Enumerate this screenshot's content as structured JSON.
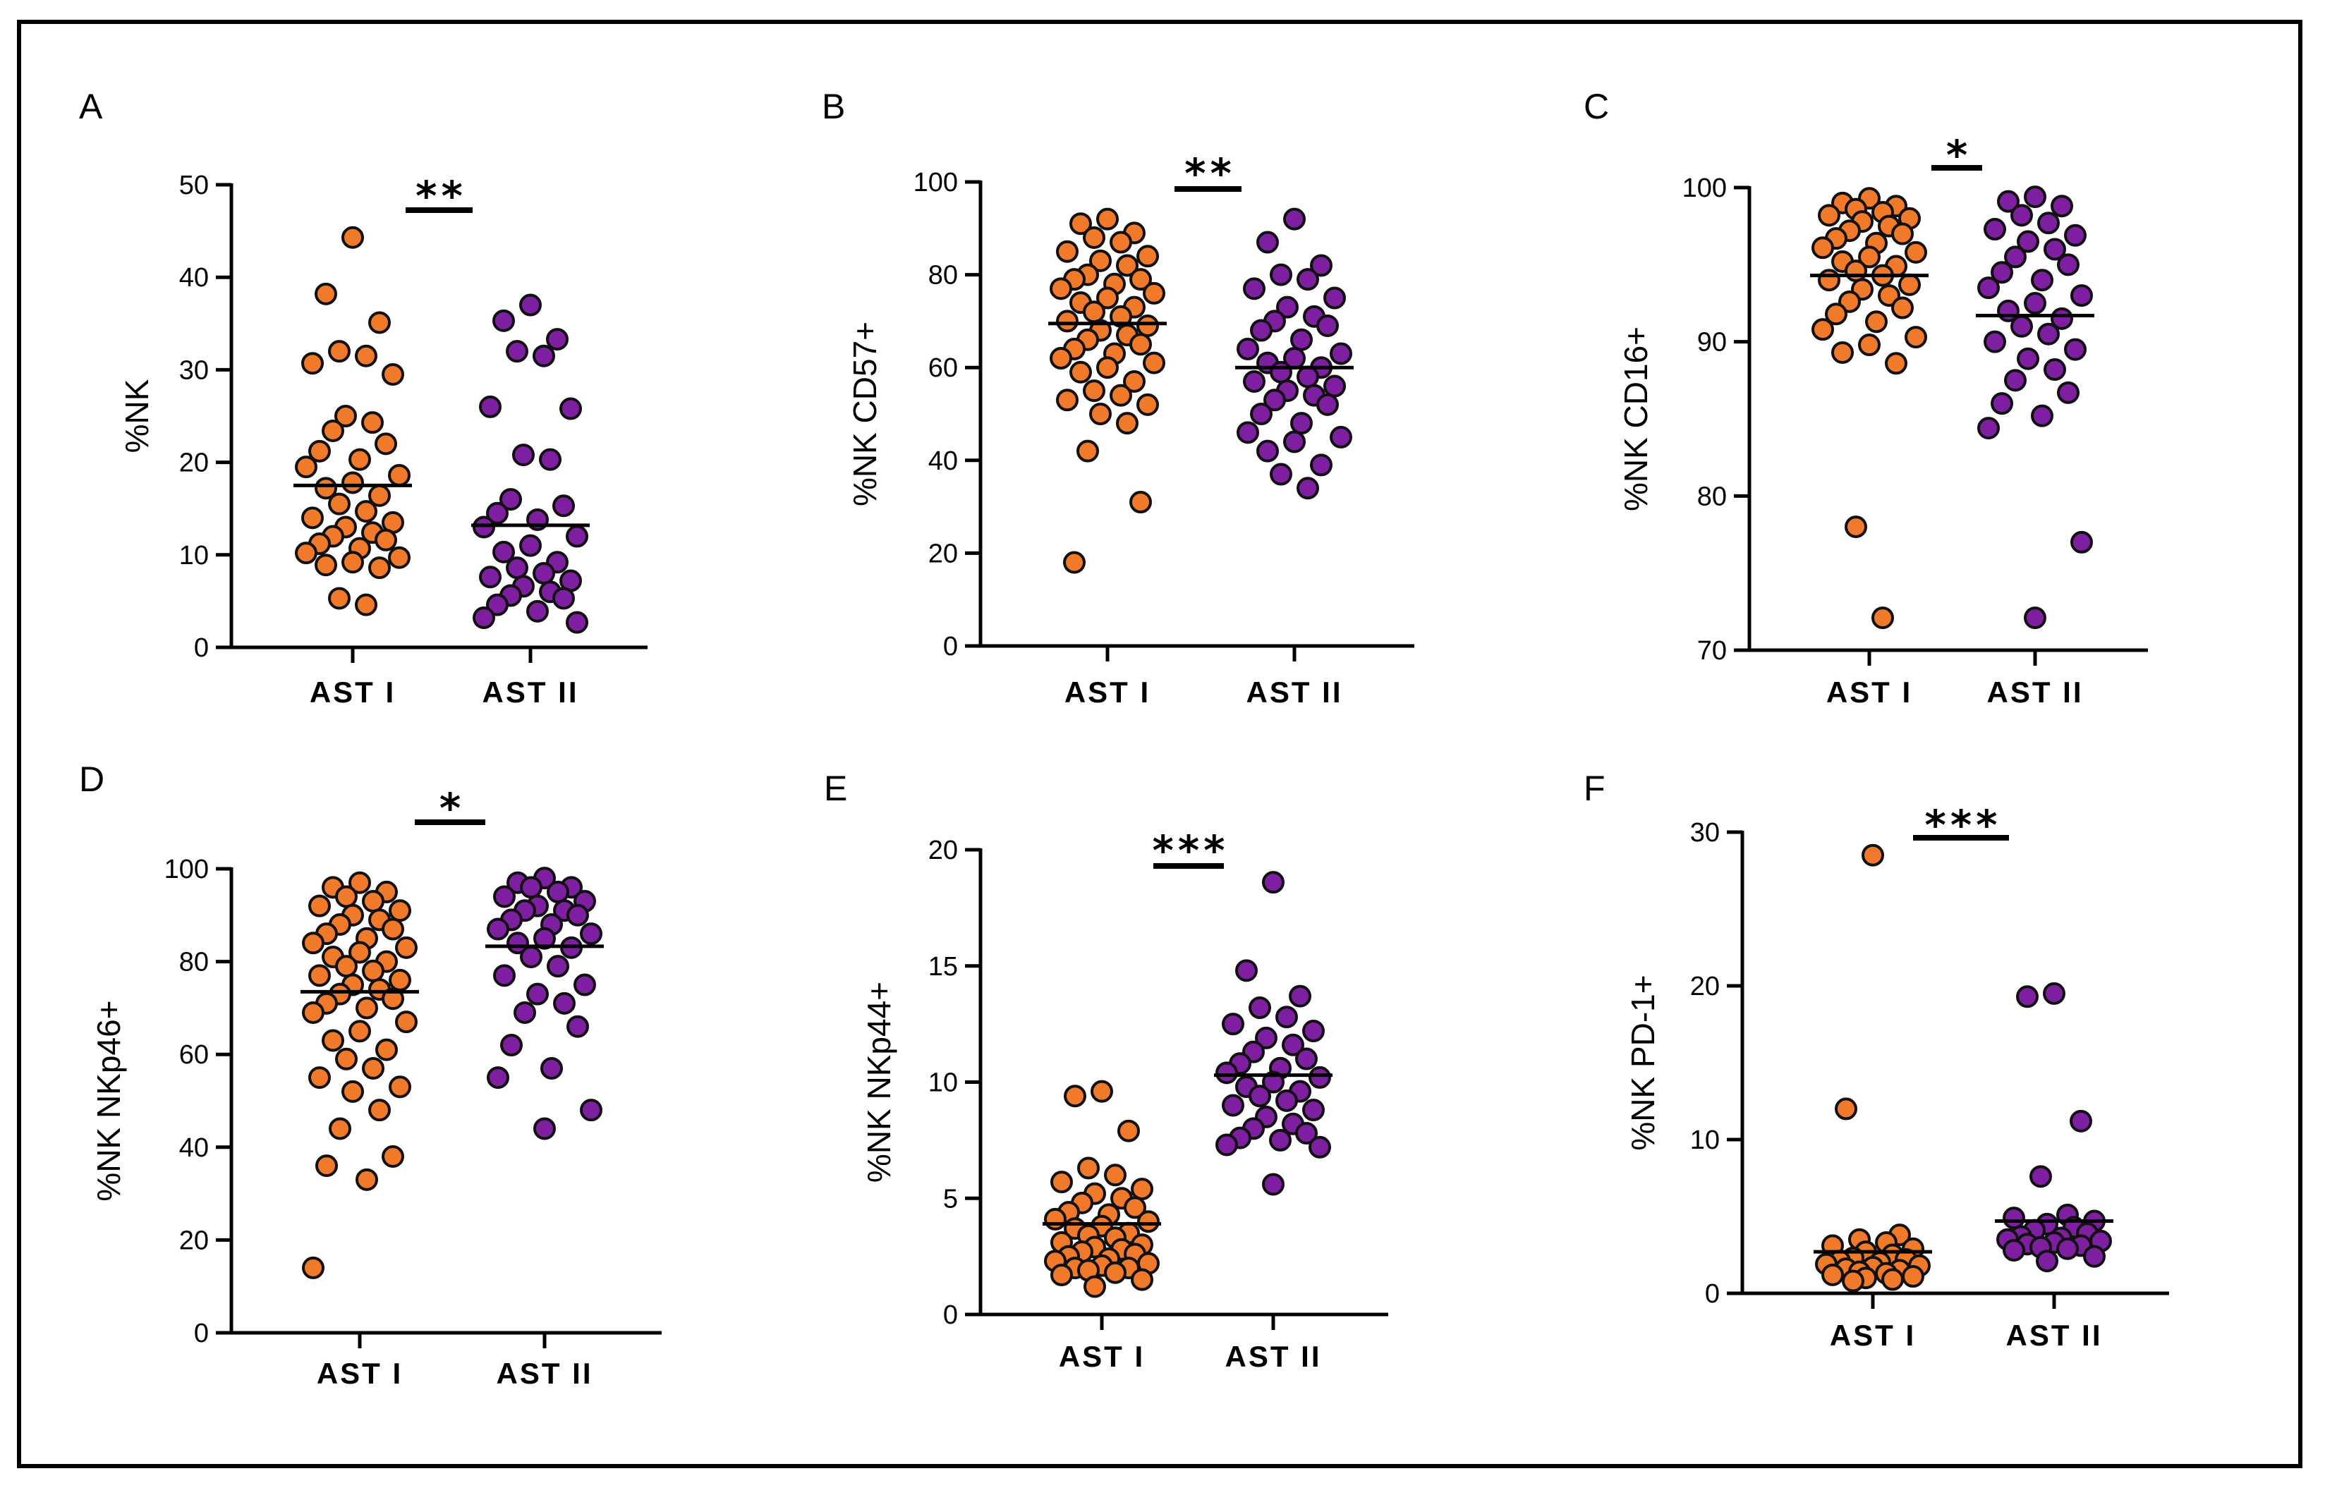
{
  "colors": {
    "ast1": "#F07A2A",
    "ast2": "#7D1FA0",
    "outline": "#111111"
  },
  "chart_data": [
    {
      "type": "scatter",
      "panel": "A",
      "ylabel": "%NK",
      "ylim": [
        0,
        50
      ],
      "yticks": [
        0,
        10,
        20,
        30,
        40,
        50
      ],
      "categories": [
        "AST I",
        "AST II"
      ],
      "significance": "**",
      "series": [
        {
          "name": "AST I",
          "mean": 17.5,
          "values": [
            44.3,
            38.2,
            35.1,
            32.0,
            31.5,
            30.7,
            29.5,
            25.0,
            24.3,
            23.4,
            22.0,
            21.2,
            20.3,
            19.5,
            18.6,
            17.8,
            17.2,
            16.4,
            15.5,
            14.7,
            14.0,
            13.5,
            13.0,
            12.4,
            12.0,
            11.6,
            11.2,
            10.7,
            10.2,
            9.7,
            9.2,
            8.9,
            8.6,
            5.3,
            4.6
          ]
        },
        {
          "name": "AST II",
          "mean": 13.2,
          "values": [
            37.0,
            35.3,
            33.3,
            32.0,
            31.5,
            26.0,
            25.8,
            20.8,
            20.3,
            16.0,
            15.3,
            14.5,
            13.8,
            13.0,
            12.0,
            11.0,
            10.3,
            9.2,
            8.6,
            8.0,
            7.6,
            7.2,
            6.6,
            6.0,
            5.6,
            5.3,
            4.6,
            3.9,
            3.2,
            2.7
          ]
        }
      ]
    },
    {
      "type": "scatter",
      "panel": "B",
      "ylabel": "%NK CD57+",
      "ylim": [
        0,
        100
      ],
      "yticks": [
        0,
        20,
        40,
        60,
        80,
        100
      ],
      "categories": [
        "AST I",
        "AST II"
      ],
      "significance": "**",
      "series": [
        {
          "name": "AST I",
          "mean": 69.5,
          "values": [
            92,
            91,
            89,
            88,
            87,
            85,
            84,
            83,
            82,
            80,
            79,
            79,
            78,
            77,
            76,
            75,
            74,
            73,
            72,
            71,
            70,
            69,
            68,
            67,
            66,
            65,
            64,
            63,
            62,
            61,
            60,
            59,
            57,
            55,
            54,
            53,
            52,
            50,
            48,
            42,
            31,
            18
          ]
        },
        {
          "name": "AST II",
          "mean": 60,
          "values": [
            92,
            87,
            82,
            80,
            79,
            77,
            75,
            73,
            71,
            70,
            69,
            68,
            66,
            64,
            63,
            62,
            61,
            60,
            59,
            58,
            57,
            56,
            55,
            54,
            53,
            52,
            50,
            48,
            46,
            45,
            44,
            42,
            39,
            37,
            34
          ]
        }
      ]
    },
    {
      "type": "scatter",
      "panel": "C",
      "ylabel": "%NK CD16+",
      "ylim": [
        70,
        100
      ],
      "yticks": [
        70,
        80,
        90,
        100
      ],
      "categories": [
        "AST I",
        "AST II"
      ],
      "significance": "*",
      "series": [
        {
          "name": "AST I",
          "mean": 94.3,
          "values": [
            99.3,
            99.0,
            98.8,
            98.6,
            98.4,
            98.2,
            98.0,
            97.8,
            97.5,
            97.2,
            97.0,
            96.7,
            96.4,
            96.1,
            95.8,
            95.5,
            95.2,
            94.9,
            94.6,
            94.3,
            94.0,
            93.7,
            93.4,
            93.0,
            92.6,
            92.2,
            91.8,
            91.3,
            90.8,
            90.3,
            89.8,
            89.3,
            88.6,
            78.0,
            72.1
          ]
        },
        {
          "name": "AST II",
          "mean": 91.7,
          "values": [
            99.4,
            99.1,
            98.8,
            98.2,
            97.7,
            97.3,
            96.9,
            96.5,
            96.0,
            95.5,
            95.0,
            94.5,
            94.0,
            93.5,
            93.0,
            92.5,
            92.0,
            91.5,
            91.0,
            90.5,
            90.0,
            89.5,
            88.9,
            88.2,
            87.5,
            86.7,
            86.0,
            85.2,
            84.4,
            77.0,
            72.1
          ]
        }
      ]
    },
    {
      "type": "scatter",
      "panel": "D",
      "ylabel": "%NK NKp46+",
      "ylim": [
        0,
        100
      ],
      "yticks": [
        0,
        20,
        40,
        60,
        80,
        100
      ],
      "categories": [
        "AST I",
        "AST II"
      ],
      "significance": "*",
      "series": [
        {
          "name": "AST I",
          "mean": 73.5,
          "values": [
            97,
            96,
            95,
            94,
            93,
            92,
            91,
            90,
            89,
            88,
            87,
            86,
            85,
            84,
            83,
            82,
            81,
            80,
            79,
            78,
            77,
            76,
            75,
            74,
            73,
            72,
            71,
            70,
            69,
            67,
            65,
            63,
            61,
            59,
            57,
            55,
            53,
            52,
            48,
            44,
            38,
            36,
            33,
            14
          ]
        },
        {
          "name": "AST II",
          "mean": 83.3,
          "values": [
            98,
            97,
            96,
            96,
            95,
            94,
            93,
            92,
            91,
            91,
            90,
            89,
            88,
            87,
            86,
            85,
            84,
            83,
            81,
            79,
            77,
            75,
            73,
            71,
            69,
            66,
            62,
            57,
            55,
            48,
            44
          ]
        }
      ]
    },
    {
      "type": "scatter",
      "panel": "E",
      "ylabel": "%NK NKp44+",
      "ylim": [
        0,
        20
      ],
      "yticks": [
        0,
        5,
        10,
        15,
        20
      ],
      "categories": [
        "AST I",
        "AST II"
      ],
      "significance": "***",
      "series": [
        {
          "name": "AST I",
          "mean": 3.9,
          "values": [
            9.6,
            9.4,
            7.9,
            6.3,
            6.0,
            5.7,
            5.4,
            5.2,
            5.0,
            4.8,
            4.6,
            4.4,
            4.3,
            4.1,
            4.0,
            3.8,
            3.7,
            3.5,
            3.4,
            3.3,
            3.1,
            3.0,
            2.9,
            2.8,
            2.7,
            2.6,
            2.5,
            2.4,
            2.3,
            2.2,
            2.1,
            2.0,
            2.0,
            1.9,
            1.8,
            1.7,
            1.5,
            1.2
          ]
        },
        {
          "name": "AST II",
          "mean": 10.3,
          "values": [
            18.6,
            14.8,
            13.7,
            13.2,
            12.8,
            12.5,
            12.2,
            11.9,
            11.6,
            11.3,
            11.0,
            10.8,
            10.6,
            10.4,
            10.2,
            10.0,
            9.8,
            9.6,
            9.4,
            9.2,
            9.0,
            8.8,
            8.5,
            8.2,
            8.0,
            7.8,
            7.6,
            7.5,
            7.3,
            7.2,
            5.6
          ]
        }
      ]
    },
    {
      "type": "scatter",
      "panel": "F",
      "ylabel": "%NK PD-1+",
      "ylim": [
        0,
        30
      ],
      "yticks": [
        0,
        10,
        20,
        30
      ],
      "categories": [
        "AST I",
        "AST II"
      ],
      "significance": "***",
      "series": [
        {
          "name": "AST I",
          "mean": 2.7,
          "values": [
            28.5,
            12.0,
            3.8,
            3.5,
            3.3,
            3.1,
            2.9,
            2.7,
            2.5,
            2.3,
            2.2,
            2.1,
            2.0,
            1.9,
            1.8,
            1.7,
            1.6,
            1.5,
            1.4,
            1.3,
            1.2,
            1.1,
            1.0,
            0.9,
            0.8
          ]
        },
        {
          "name": "AST II",
          "mean": 4.7,
          "values": [
            19.5,
            19.3,
            11.2,
            7.6,
            5.1,
            4.9,
            4.7,
            4.5,
            4.3,
            4.1,
            3.9,
            3.7,
            3.6,
            3.5,
            3.4,
            3.3,
            3.2,
            3.1,
            3.0,
            2.9,
            2.8,
            2.4,
            2.1
          ]
        }
      ]
    }
  ]
}
